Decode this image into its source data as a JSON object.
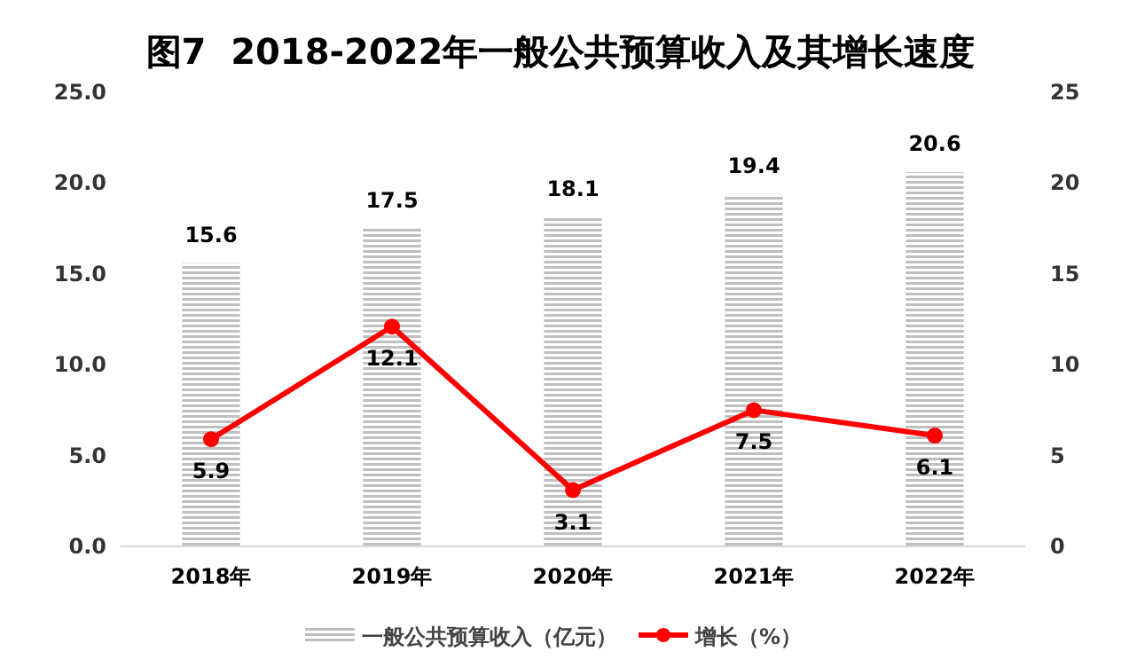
{
  "chart_data": {
    "type": "bar",
    "title": "图7  2018-2022年一般公共预算收入及其增长速度",
    "categories": [
      "2018年",
      "2019年",
      "2020年",
      "2021年",
      "2022年"
    ],
    "series": [
      {
        "name": "一般公共预算收入（亿元）",
        "color": "#bfbfbf",
        "values": [
          15.6,
          17.5,
          18.1,
          19.4,
          20.6
        ]
      },
      {
        "name": "增长（%）",
        "type": "line",
        "axis": "y2",
        "color": "#ff0000",
        "values": [
          5.9,
          12.1,
          3.1,
          7.5,
          6.1
        ]
      }
    ],
    "ylim": [
      0,
      25
    ],
    "yticks": [
      {
        "value": 0,
        "label": "0.0"
      },
      {
        "value": 5,
        "label": "5.0"
      },
      {
        "value": 10,
        "label": "10.0"
      },
      {
        "value": 15,
        "label": "15.0"
      },
      {
        "value": 20,
        "label": "20.0"
      },
      {
        "value": 25,
        "label": "25.0"
      }
    ],
    "y2lim": [
      0,
      25
    ],
    "y2ticks": [
      0,
      5,
      10,
      15,
      20,
      25
    ],
    "data_labels": true,
    "legend": "bottom",
    "marker": "circle"
  }
}
